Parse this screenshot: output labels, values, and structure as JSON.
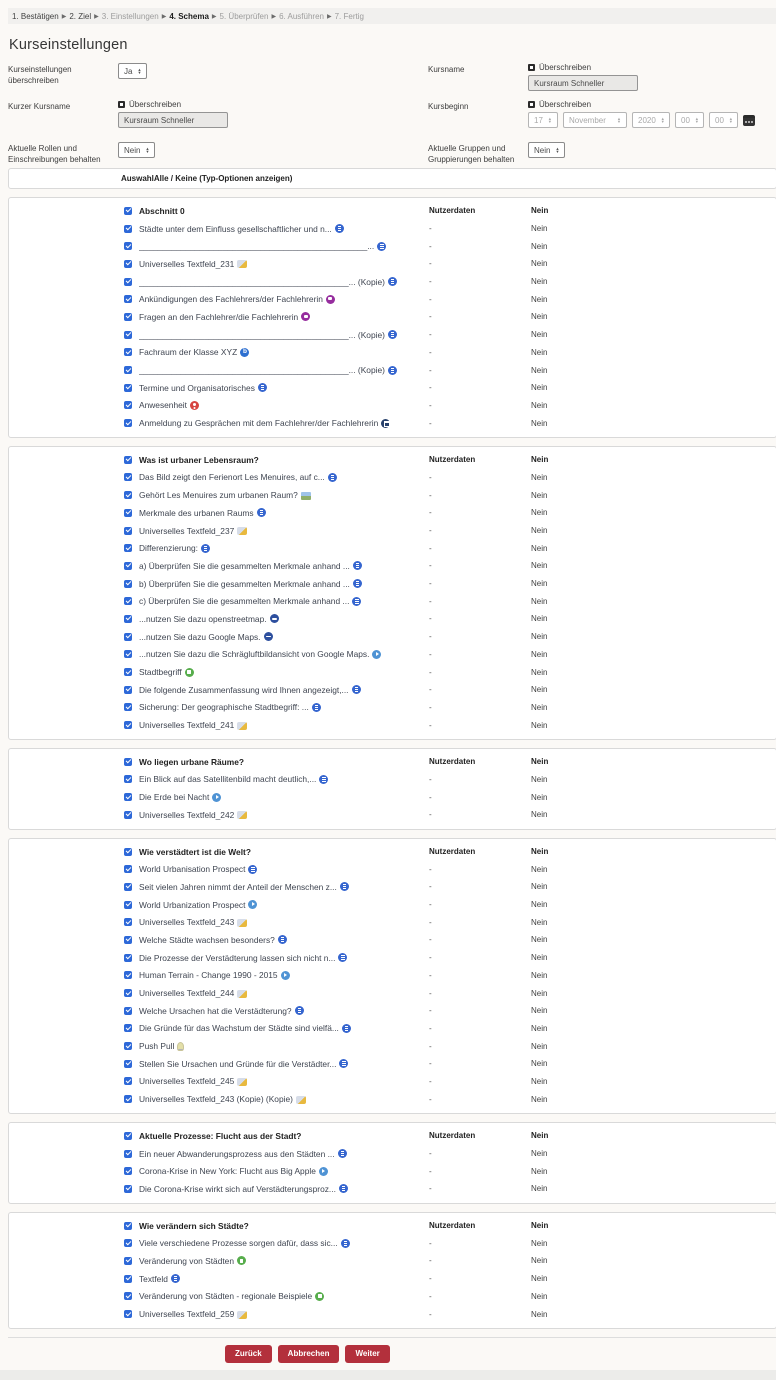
{
  "breadcrumb": {
    "separator": "▶",
    "steps": [
      {
        "label": "1. Bestätigen",
        "state": "done"
      },
      {
        "label": "2. Ziel",
        "state": "done"
      },
      {
        "label": "3. Einstellungen",
        "state": "todo"
      },
      {
        "label": "4. Schema",
        "state": "current"
      },
      {
        "label": "5. Überprüfen",
        "state": "todo"
      },
      {
        "label": "6. Ausführen",
        "state": "todo"
      },
      {
        "label": "7. Fertig",
        "state": "todo"
      }
    ]
  },
  "page_title": "Kurseinstellungen",
  "form": {
    "overwrite_checkbox_label": "Überschreiben",
    "left_fields": [
      {
        "label": "Kurseinstellungen überschreiben",
        "type": "select",
        "value": "Ja"
      },
      {
        "label": "Kurzer Kursname",
        "type": "override-text",
        "value": "Kursraum Schneller"
      },
      {
        "label": "Aktuelle Rollen und Einschreibungen behalten",
        "type": "select",
        "value": "Nein"
      }
    ],
    "right_fields": [
      {
        "label": "Kursname",
        "type": "override-text",
        "value": "Kursraum Schneller"
      },
      {
        "label": "Kursbeginn",
        "type": "override-date",
        "date": {
          "day": "17",
          "month": "November",
          "year": "2020",
          "hour": "00",
          "minute": "00"
        }
      },
      {
        "label": "Aktuelle Gruppen und Gruppierungen behalten",
        "type": "select",
        "value": "Nein"
      }
    ]
  },
  "selection_bar": {
    "prefix": "Auswahl",
    "all_none": "Alle / Keine",
    "type_options": " (Typ-Optionen anzeigen)"
  },
  "columns": {
    "userdata": "Nutzerdaten",
    "empty": "-",
    "value": "Nein"
  },
  "sections": [
    {
      "title": "Abschnitt 0",
      "items": [
        {
          "label": "Städte unter dem Einfluss gesellschaftlicher und n...",
          "icon": "page"
        },
        {
          "label": "_________________________________________________...",
          "icon": "page"
        },
        {
          "label": "Universelles Textfeld_231",
          "icon": "label"
        },
        {
          "label": "_____________________________________________... (Kopie)",
          "icon": "page"
        },
        {
          "label": "Ankündigungen des Fachlehrers/der Fachlehrerin",
          "icon": "forum"
        },
        {
          "label": "Fragen an den Fachlehrer/die Fachlehrerin",
          "icon": "forum"
        },
        {
          "label": "_____________________________________________... (Kopie)",
          "icon": "page"
        },
        {
          "label": "Fachraum der Klasse XYZ",
          "icon": "bigbluebutton"
        },
        {
          "label": "_____________________________________________... (Kopie)",
          "icon": "page"
        },
        {
          "label": "Termine und Organisatorisches",
          "icon": "page"
        },
        {
          "label": "Anwesenheit",
          "icon": "attendance"
        },
        {
          "label": "Anmeldung zu Gesprächen mit dem Fachlehrer/der Fachlehrerin",
          "icon": "scheduler"
        }
      ]
    },
    {
      "title": "Was ist urbaner Lebensraum?",
      "items": [
        {
          "label": "Das Bild zeigt den Ferienort Les Menuires, auf c...",
          "icon": "page"
        },
        {
          "label": "Gehört Les Menuires zum urbanen Raum?",
          "icon": "image"
        },
        {
          "label": "Merkmale des urbanen Raums",
          "icon": "page"
        },
        {
          "label": "Universelles Textfeld_237",
          "icon": "label"
        },
        {
          "label": "Differenzierung:",
          "icon": "page"
        },
        {
          "label": "a) Überprüfen Sie die gesammelten Merkmale anhand ...",
          "icon": "page"
        },
        {
          "label": "b) Überprüfen Sie die gesammelten Merkmale anhand ...",
          "icon": "page"
        },
        {
          "label": "c) Überprüfen Sie die gesammelten Merkmale anhand ...",
          "icon": "page"
        },
        {
          "label": "...nutzen Sie dazu openstreetmap.",
          "icon": "url"
        },
        {
          "label": "...nutzen Sie dazu Google Maps.",
          "icon": "url"
        },
        {
          "label": "...nutzen Sie dazu die Schrägluftbildansicht von Google Maps.",
          "icon": "video"
        },
        {
          "label": "Stadtbegriff",
          "icon": "glossary"
        },
        {
          "label": "Die folgende Zusammenfassung wird Ihnen angezeigt,...",
          "icon": "page"
        },
        {
          "label": "Sicherung: Der geographische Stadtbegriff: ...",
          "icon": "page"
        },
        {
          "label": "Universelles Textfeld_241",
          "icon": "label"
        }
      ]
    },
    {
      "title": "Wo liegen urbane Räume?",
      "items": [
        {
          "label": "Ein Blick auf das Satellitenbild macht deutlich,...",
          "icon": "page"
        },
        {
          "label": "Die Erde bei Nacht",
          "icon": "video"
        },
        {
          "label": "Universelles Textfeld_242",
          "icon": "label"
        }
      ]
    },
    {
      "title": "Wie verstädtert ist die Welt?",
      "items": [
        {
          "label": "World Urbanisation Prospect",
          "icon": "page"
        },
        {
          "label": "Seit vielen Jahren nimmt der Anteil der Menschen z...",
          "icon": "page"
        },
        {
          "label": "World Urbanization Prospect",
          "icon": "video"
        },
        {
          "label": "Universelles Textfeld_243",
          "icon": "label"
        },
        {
          "label": "Welche Städte wachsen besonders?",
          "icon": "page"
        },
        {
          "label": "Die Prozesse der Verstädterung lassen sich nicht n...",
          "icon": "page"
        },
        {
          "label": "Human Terrain - Change 1990 - 2015",
          "icon": "video"
        },
        {
          "label": "Universelles Textfeld_244",
          "icon": "label"
        },
        {
          "label": "Welche Ursachen hat die Verstädterung?",
          "icon": "page"
        },
        {
          "label": "Die Gründe für das Wachstum der Städte sind vielfä...",
          "icon": "page"
        },
        {
          "label": "Push Pull",
          "icon": "h5p"
        },
        {
          "label": "Stellen Sie Ursachen und Gründe für die Verstädter...",
          "icon": "page"
        },
        {
          "label": "Universelles Textfeld_245",
          "icon": "label"
        },
        {
          "label": "Universelles Textfeld_243 (Kopie) (Kopie)",
          "icon": "label"
        }
      ]
    },
    {
      "title": "Aktuelle Prozesse: Flucht aus der Stadt?",
      "items": [
        {
          "label": "Ein neuer Abwanderungsprozess aus den Städten ...",
          "icon": "page"
        },
        {
          "label": "Corona-Krise in New York: Flucht aus Big Apple",
          "icon": "video"
        },
        {
          "label": "Die Corona-Krise wirkt sich auf Verstädterungsproz...",
          "icon": "page"
        }
      ]
    },
    {
      "title": "Wie verändern sich Städte?",
      "items": [
        {
          "label": "Viele verschiedene Prozesse sorgen dafür, dass sic...",
          "icon": "page"
        },
        {
          "label": "Veränderung von Städten",
          "icon": "glossary"
        },
        {
          "label": "Textfeld",
          "icon": "page"
        },
        {
          "label": "Veränderung von Städten - regionale Beispiele",
          "icon": "glossary"
        },
        {
          "label": "Universelles Textfeld_259",
          "icon": "label"
        }
      ]
    }
  ],
  "buttons": {
    "back": "Zurück",
    "cancel": "Abbrechen",
    "next": "Weiter"
  },
  "colors": {
    "accent_red": "#b3303c",
    "checkbox_blue": "#2d68d8",
    "panel_border": "#d9d9d9"
  }
}
